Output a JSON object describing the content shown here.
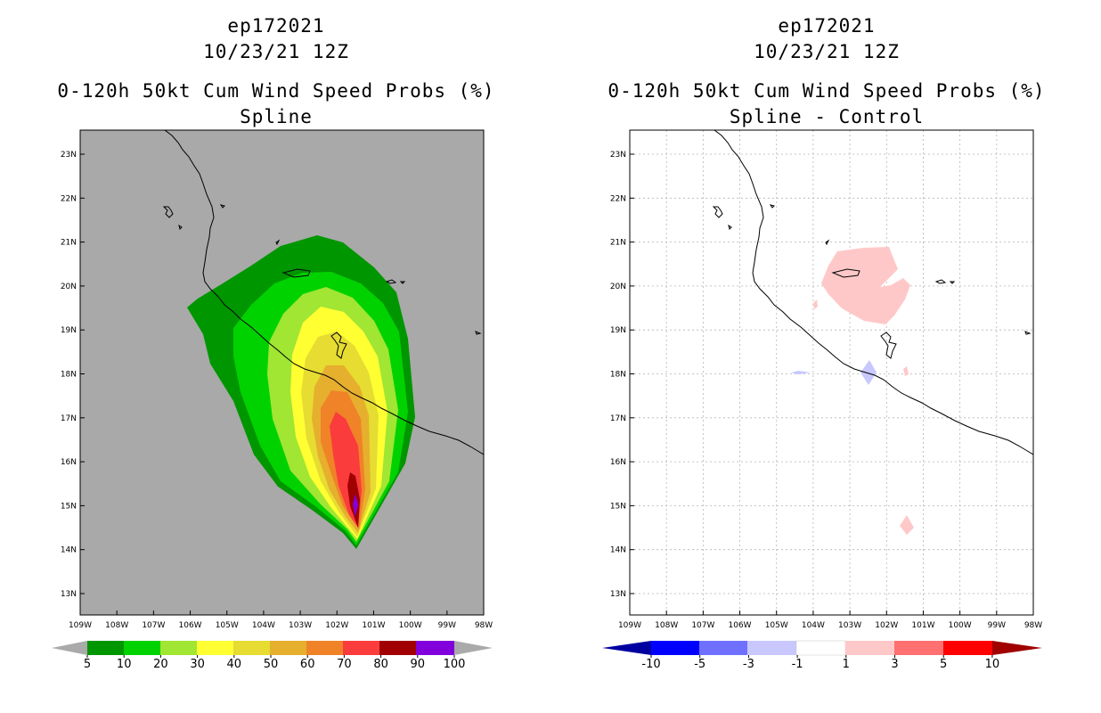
{
  "colors": {
    "land_bg": "#a9a9a9",
    "p5": "#009600",
    "p10": "#00d200",
    "p20": "#a0e632",
    "p30": "#ffff32",
    "p40": "#e6dc32",
    "p50": "#e6af2d",
    "p60": "#f08228",
    "p70": "#fa3c3c",
    "p80": "#a00000",
    "p90": "#8200dc",
    "p100": "#aaaaaa",
    "d_m10": "#0000a0",
    "d_m5": "#0000ff",
    "d_m3": "#7070ff",
    "d_m1": "#c8c8ff",
    "d_0": "#ffffff",
    "d_1": "#ffc8c8",
    "d_3": "#ff7070",
    "d_5": "#ff0000",
    "d_10": "#a00000"
  },
  "left_panel": {
    "storm_id": "ep172021",
    "datetime": "10/23/21 12Z",
    "product": "0-120h 50kt Cum Wind Speed Probs (%)",
    "subtitle": "Spline",
    "colorbar_labels": [
      "5",
      "10",
      "20",
      "30",
      "40",
      "50",
      "60",
      "70",
      "80",
      "90",
      "100"
    ]
  },
  "right_panel": {
    "storm_id": "ep172021",
    "datetime": "10/23/21 12Z",
    "product": "0-120h 50kt Cum Wind Speed Probs (%)",
    "subtitle": "Spline - Control",
    "colorbar_labels": [
      "-10",
      "-5",
      "-3",
      "-1",
      "1",
      "3",
      "5",
      "10"
    ]
  },
  "axes": {
    "lon_labels": [
      "109W",
      "108W",
      "107W",
      "106W",
      "105W",
      "104W",
      "103W",
      "102W",
      "101W",
      "100W",
      "99W",
      "98W"
    ],
    "lat_labels": [
      "13N",
      "14N",
      "15N",
      "16N",
      "17N",
      "18N",
      "19N",
      "20N",
      "21N",
      "22N",
      "23N"
    ]
  }
}
